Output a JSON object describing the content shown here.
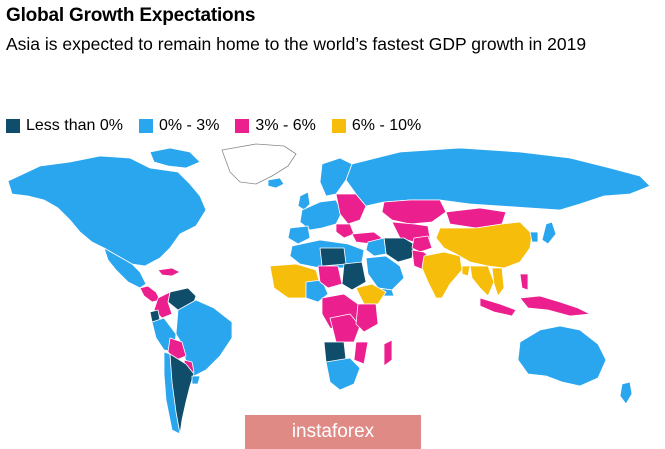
{
  "title": "Global Growth Expectations",
  "subtitle": "Asia is expected to remain home to the world’s fastest GDP growth in 2019",
  "legend": [
    {
      "label": "Less than 0%",
      "color": "#0f4d6b"
    },
    {
      "label": "0% - 3%",
      "color": "#2aa6ef"
    },
    {
      "label": "3% - 6%",
      "color": "#ec1f8e"
    },
    {
      "label": "6% - 10%",
      "color": "#f7bd0b"
    }
  ],
  "no_data_color": "#ffffff",
  "watermark": "instaforex"
}
